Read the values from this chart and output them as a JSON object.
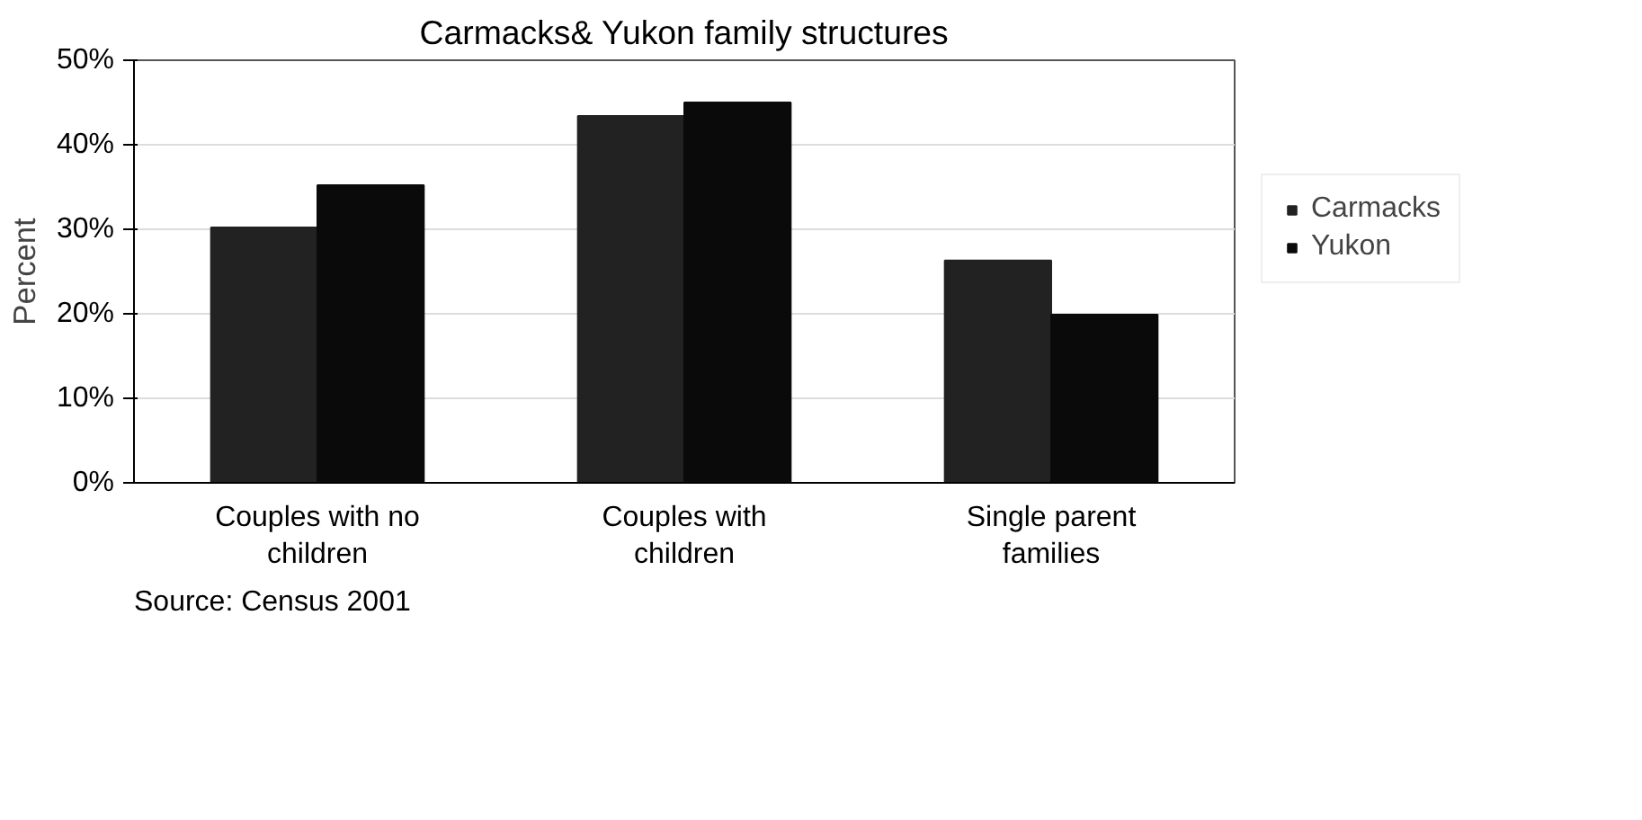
{
  "chart_data": {
    "type": "bar",
    "title": "Carmacks& Yukon family structures",
    "ylabel": "Percent",
    "categories": [
      "Couples with no\nchildren",
      "Couples with\nchildren",
      "Single parent\nfamilies"
    ],
    "series": [
      {
        "name": "Carmacks",
        "color": "#222222",
        "values": [
          30.2,
          43.4,
          26.3
        ]
      },
      {
        "name": "Yukon",
        "color": "#0a0a0a",
        "values": [
          35.2,
          45.0,
          19.9
        ]
      }
    ],
    "ylim": [
      0,
      50
    ],
    "yticks": [
      {
        "value": 0,
        "label": "0%"
      },
      {
        "value": 10,
        "label": "10%"
      },
      {
        "value": 20,
        "label": "20%"
      },
      {
        "value": 30,
        "label": "30%"
      },
      {
        "value": 40,
        "label": "40%"
      },
      {
        "value": 50,
        "label": "50%"
      }
    ],
    "grid": "y",
    "legend": "right",
    "annotations": [
      "Source: Census 2001"
    ]
  }
}
